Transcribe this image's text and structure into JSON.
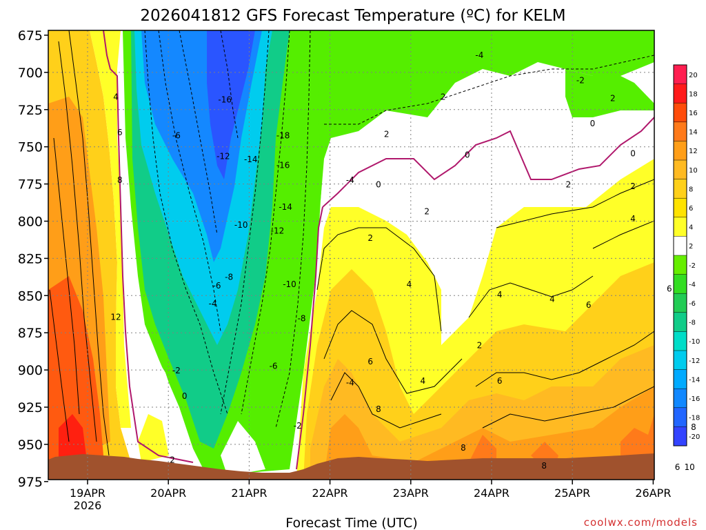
{
  "chart_data": {
    "type": "heatmap",
    "title": "2026041812 GFS Forecast Temperature (ºC) for KELM",
    "xlabel": "Forecast Time (UTC)",
    "ylabel": "",
    "x_ticks": [
      "19APR",
      "20APR",
      "21APR",
      "22APR",
      "23APR",
      "24APR",
      "25APR",
      "26APR"
    ],
    "x_tick_sub": [
      "2026"
    ],
    "y_ticks": [
      "675",
      "700",
      "725",
      "750",
      "775",
      "800",
      "825",
      "850",
      "875",
      "900",
      "925",
      "950",
      "975"
    ],
    "colorbar": {
      "levels": [
        20,
        18,
        16,
        14,
        12,
        10,
        8,
        6,
        4,
        2,
        -2,
        -4,
        -6,
        -8,
        -10,
        -12,
        -14,
        -16,
        -18,
        -20
      ],
      "colors": [
        "#ff1e50",
        "#ff1a1a",
        "#ff4c0a",
        "#ff7a1a",
        "#ff9e18",
        "#ffba22",
        "#ffd01a",
        "#ffe300",
        "#ffff28",
        "#ffffff",
        "#66ee00",
        "#33dd22",
        "#22cc55",
        "#11cc88",
        "#00ddc8",
        "#00ccee",
        "#00aaff",
        "#1188ff",
        "#2266ff",
        "#3344ff"
      ],
      "labels": [
        "20",
        "18",
        "16",
        "14",
        "12",
        "10",
        "8",
        "6",
        "4",
        "2",
        "-2",
        "-4",
        "-6",
        "-8",
        "-10",
        "-12",
        "-14",
        "-16",
        "-18",
        "-20"
      ]
    },
    "contour_labels": [
      {
        "text": "-4",
        "d": 4.85,
        "p": 688
      },
      {
        "text": "2",
        "d": 4.4,
        "p": 716
      },
      {
        "text": "-2",
        "d": 6.1,
        "p": 705
      },
      {
        "text": "2",
        "d": 6.5,
        "p": 717
      },
      {
        "text": "4",
        "d": 0.35,
        "p": 716
      },
      {
        "text": "-16",
        "d": 1.7,
        "p": 718
      },
      {
        "text": "0",
        "d": 6.25,
        "p": 734
      },
      {
        "text": "2",
        "d": 3.7,
        "p": 741
      },
      {
        "text": "6",
        "d": 0.4,
        "p": 740
      },
      {
        "text": "-6",
        "d": 1.1,
        "p": 742
      },
      {
        "text": "-18",
        "d": 2.42,
        "p": 742
      },
      {
        "text": "-12",
        "d": 1.68,
        "p": 756
      },
      {
        "text": "-14",
        "d": 2.02,
        "p": 758
      },
      {
        "text": "0",
        "d": 4.7,
        "p": 755
      },
      {
        "text": "0",
        "d": 6.75,
        "p": 754
      },
      {
        "text": "-16",
        "d": 2.42,
        "p": 762
      },
      {
        "text": "8",
        "d": 0.4,
        "p": 772
      },
      {
        "text": "-4",
        "d": 3.25,
        "p": 772
      },
      {
        "text": "0",
        "d": 3.6,
        "p": 775
      },
      {
        "text": "2",
        "d": 5.95,
        "p": 775
      },
      {
        "text": "2",
        "d": 6.75,
        "p": 776
      },
      {
        "text": "-14",
        "d": 2.45,
        "p": 790
      },
      {
        "text": "2",
        "d": 4.2,
        "p": 793
      },
      {
        "text": "4",
        "d": 6.75,
        "p": 798
      },
      {
        "text": "-10",
        "d": 1.9,
        "p": 802
      },
      {
        "text": "-12",
        "d": 2.35,
        "p": 806
      },
      {
        "text": "2",
        "d": 3.5,
        "p": 811
      },
      {
        "text": "-8",
        "d": 1.75,
        "p": 837
      },
      {
        "text": "-6",
        "d": 1.6,
        "p": 843
      },
      {
        "text": "-10",
        "d": 2.5,
        "p": 842
      },
      {
        "text": "4",
        "d": 3.98,
        "p": 842
      },
      {
        "text": "6",
        "d": 7.2,
        "p": 845
      },
      {
        "text": "-4",
        "d": 1.55,
        "p": 855
      },
      {
        "text": "12",
        "d": 0.35,
        "p": 864
      },
      {
        "text": "4",
        "d": 5.1,
        "p": 849
      },
      {
        "text": "4",
        "d": 5.75,
        "p": 852
      },
      {
        "text": "6",
        "d": 6.2,
        "p": 856
      },
      {
        "text": "-8",
        "d": 2.65,
        "p": 865
      },
      {
        "text": "2",
        "d": 4.85,
        "p": 883
      },
      {
        "text": "6",
        "d": 3.5,
        "p": 894
      },
      {
        "text": "-6",
        "d": 2.3,
        "p": 897
      },
      {
        "text": "-2",
        "d": 1.1,
        "p": 900
      },
      {
        "text": "4",
        "d": 4.15,
        "p": 907
      },
      {
        "text": "6",
        "d": 5.1,
        "p": 907
      },
      {
        "text": "-4",
        "d": 3.25,
        "p": 908
      },
      {
        "text": "0",
        "d": 1.2,
        "p": 917
      },
      {
        "text": "8",
        "d": 3.6,
        "p": 926
      },
      {
        "text": "-2",
        "d": 2.6,
        "p": 937
      },
      {
        "text": "8",
        "d": 7.5,
        "p": 938
      },
      {
        "text": "8",
        "d": 4.65,
        "p": 952
      },
      {
        "text": "2",
        "d": 1.05,
        "p": 960
      },
      {
        "text": "8",
        "d": 5.65,
        "p": 964
      },
      {
        "text": "6",
        "d": 7.3,
        "p": 965
      },
      {
        "text": "10",
        "d": 7.45,
        "p": 965
      }
    ],
    "credit": "coolwx.com/models",
    "colors": {
      "freezing_line": "#b0186c",
      "terrain": "#a0522d",
      "background": "#ffffff",
      "grid": "#808080"
    }
  }
}
